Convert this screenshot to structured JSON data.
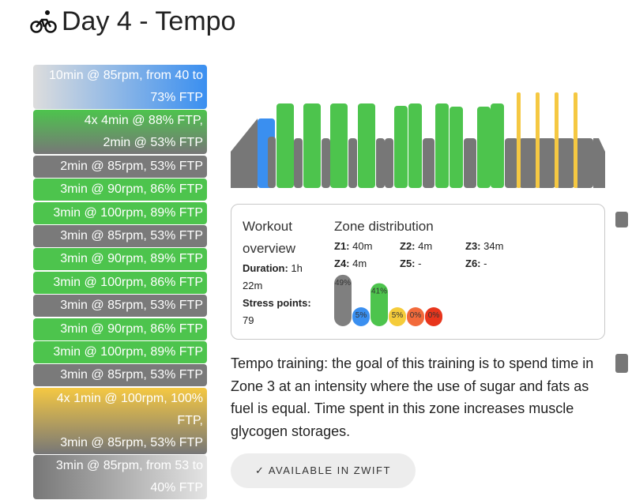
{
  "header": {
    "title": "Day 4 - Tempo"
  },
  "steps": [
    [
      "10min @ 85rpm, from 40 to 73% FTP"
    ],
    [
      "4x 4min @ 88% FTP,",
      "2min @ 53% FTP"
    ],
    [
      "2min @ 85rpm, 53% FTP"
    ],
    [
      "3min @ 90rpm, 86% FTP"
    ],
    [
      "3min @ 100rpm, 89% FTP"
    ],
    [
      "3min @ 85rpm, 53% FTP"
    ],
    [
      "3min @ 90rpm, 89% FTP"
    ],
    [
      "3min @ 100rpm, 86% FTP"
    ],
    [
      "3min @ 85rpm, 53% FTP"
    ],
    [
      "3min @ 90rpm, 86% FTP"
    ],
    [
      "3min @ 100rpm, 89% FTP"
    ],
    [
      "3min @ 85rpm, 53% FTP"
    ],
    [
      "4x 1min @ 100rpm, 100% FTP,",
      "3min @ 85rpm, 53% FTP"
    ],
    [
      "3min @ 85rpm, from 53 to 40% FTP"
    ]
  ],
  "overview": {
    "title": "Workout overview",
    "duration_label": "Duration:",
    "duration": "1h 22m",
    "stress_label": "Stress points:",
    "stress": 79
  },
  "zones": {
    "title": "Zone distribution",
    "items": [
      {
        "label": "Z1:",
        "value": "40m"
      },
      {
        "label": "Z2:",
        "value": "4m"
      },
      {
        "label": "Z3:",
        "value": "34m"
      },
      {
        "label": "Z4:",
        "value": "4m"
      },
      {
        "label": "Z5:",
        "value": "-"
      },
      {
        "label": "Z6:",
        "value": "-"
      }
    ],
    "chart": {
      "values": [
        49,
        5,
        41,
        5,
        0,
        0
      ],
      "value_labels": [
        "49%",
        "5%",
        "41%",
        "5%",
        "0%",
        "0%"
      ],
      "colors": [
        "#7f7f7f",
        "#3a8ff0",
        "#4dc44d",
        "#f5cc3a",
        "#f26a3b",
        "#e8351c"
      ]
    }
  },
  "description": "Tempo training: the goal of this training is to spend time in Zone 3 at an intensity where the use of sugar and fats as fuel is equal. Time spent in this zone increases muscle glycogen storages.",
  "button": "✓ AVAILABLE IN ZWIFT"
}
